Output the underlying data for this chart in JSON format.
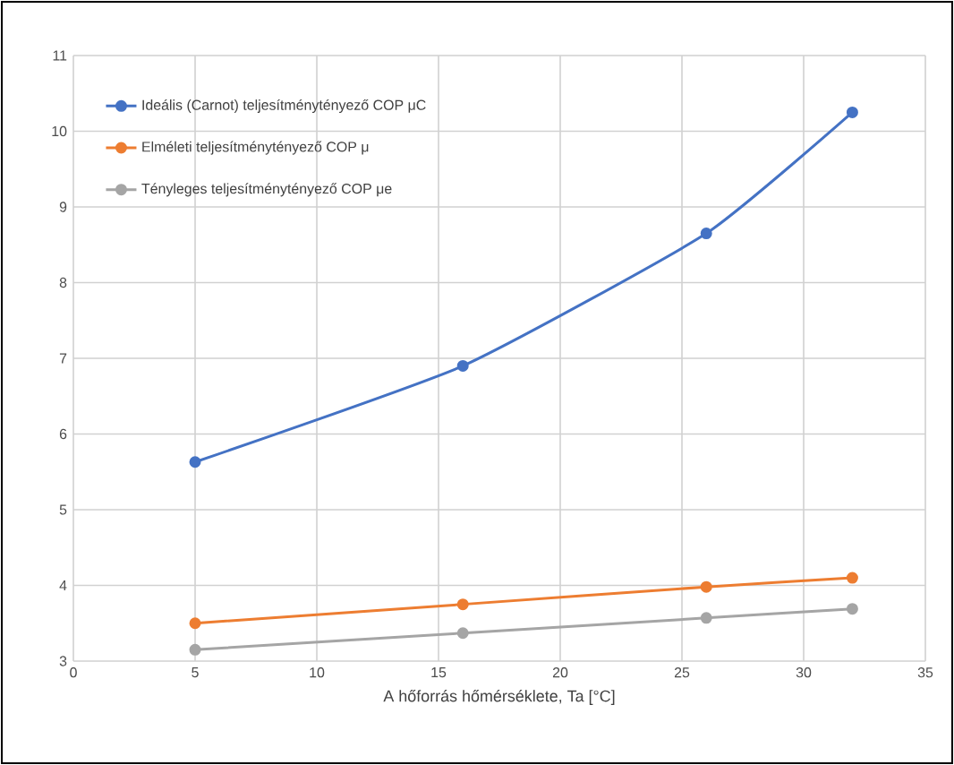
{
  "chart_data": {
    "type": "line",
    "xlabel": "A hőforrás hőmérséklete, Ta [°C]",
    "x": [
      5,
      16,
      26,
      32
    ],
    "series": [
      {
        "name": "Ideális (Carnot) teljesítménytényező COP μC",
        "color": "#4472c4",
        "values": [
          5.63,
          6.9,
          8.65,
          10.25
        ]
      },
      {
        "name": "Elméleti  teljesítménytényező COP μ",
        "color": "#ed7d31",
        "values": [
          3.5,
          3.75,
          3.98,
          4.1
        ]
      },
      {
        "name": "Tényleges teljesítménytényező COP μe",
        "color": "#a5a5a5",
        "values": [
          3.15,
          3.37,
          3.57,
          3.69
        ]
      }
    ],
    "xlim": [
      0,
      35
    ],
    "xticks": [
      0,
      5,
      10,
      15,
      20,
      25,
      30,
      35
    ],
    "ylim": [
      3,
      11
    ],
    "yticks": [
      3,
      4,
      5,
      6,
      7,
      8,
      9,
      10,
      11
    ],
    "grid": true,
    "legend": "top left",
    "marker": "circle",
    "line_style": "solid"
  }
}
